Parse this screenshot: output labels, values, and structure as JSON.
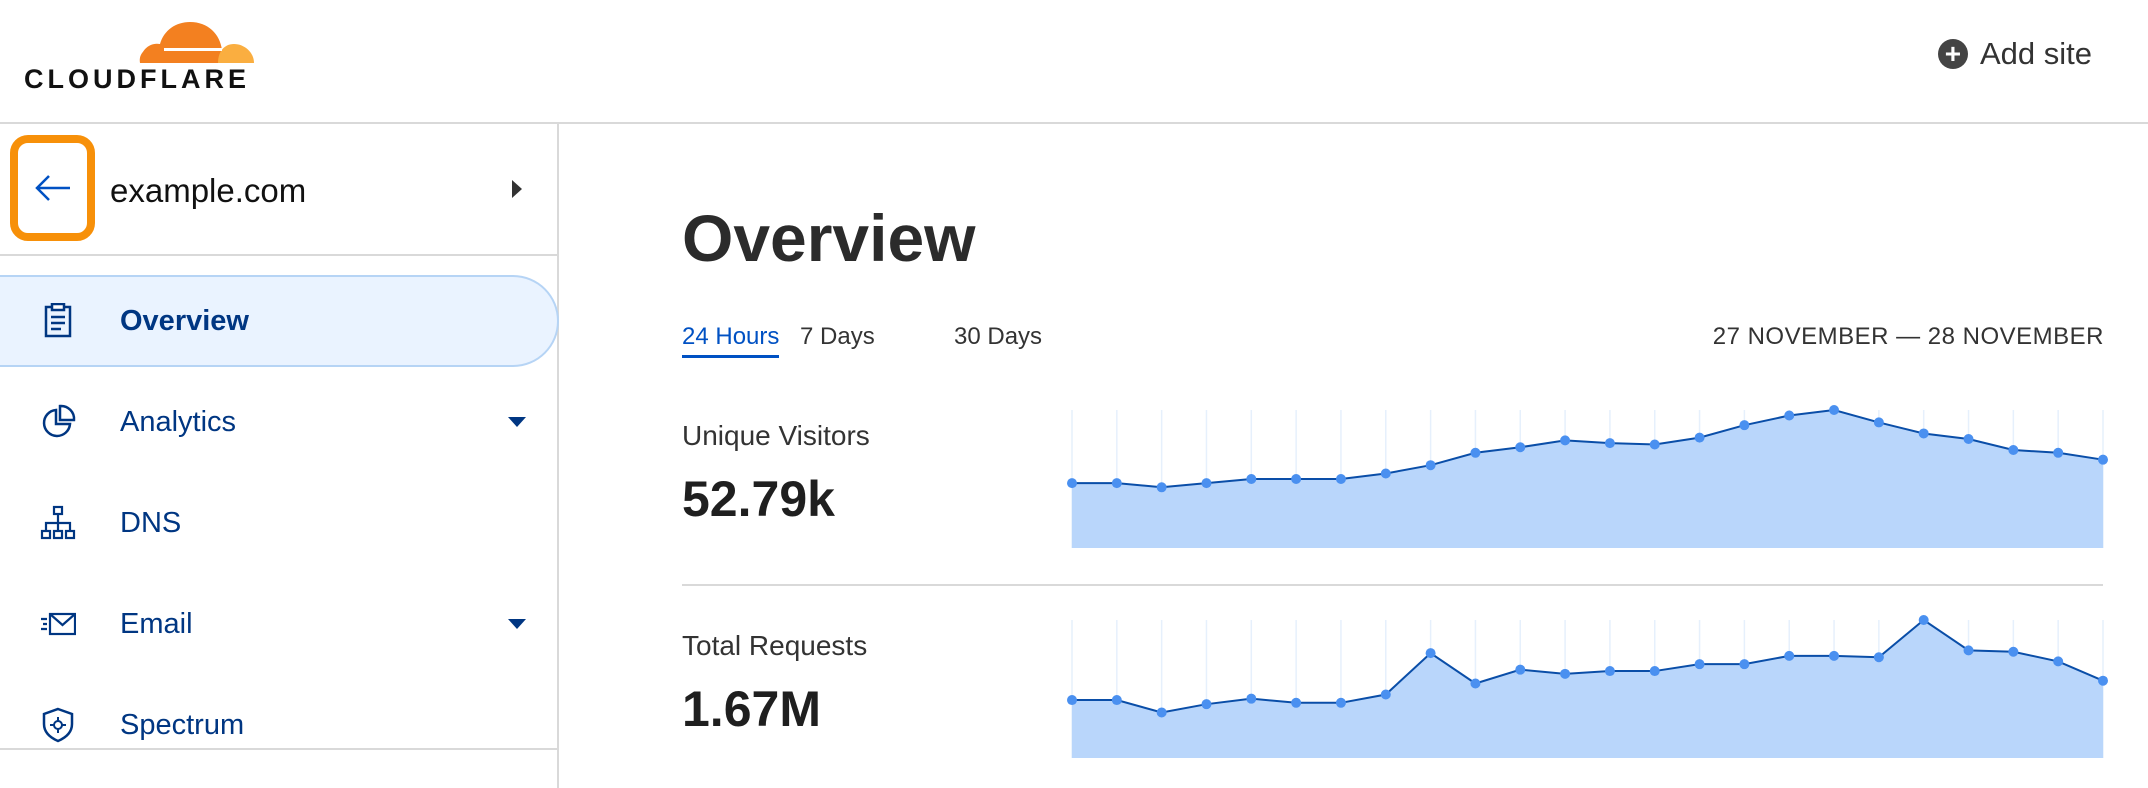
{
  "header": {
    "logo_text": "CLOUDFLARE",
    "add_site_label": "Add site",
    "add_icon": "plus-circle-icon"
  },
  "sidebar": {
    "domain": "example.com",
    "back_icon": "arrow-left-icon",
    "highlight_color": "#f79009",
    "items": [
      {
        "label": "Overview",
        "icon": "clipboard-icon",
        "active": true,
        "dropdown": false
      },
      {
        "label": "Analytics",
        "icon": "pie-chart-icon",
        "active": false,
        "dropdown": true
      },
      {
        "label": "DNS",
        "icon": "network-icon",
        "active": false,
        "dropdown": false
      },
      {
        "label": "Email",
        "icon": "email-icon",
        "active": false,
        "dropdown": true
      },
      {
        "label": "Spectrum",
        "icon": "shield-icon",
        "active": false,
        "dropdown": false
      }
    ]
  },
  "main": {
    "title": "Overview",
    "tabs": [
      {
        "label": "24 Hours",
        "active": true
      },
      {
        "label": "7 Days"
      },
      {
        "label": "30 Days"
      }
    ],
    "date_range": "27 NOVEMBER — 28 NOVEMBER",
    "metrics": [
      {
        "label": "Unique Visitors",
        "value": "52.79k"
      },
      {
        "label": "Total Requests",
        "value": "1.67M"
      }
    ]
  },
  "chart_data": [
    {
      "type": "area",
      "name": "Unique Visitors",
      "y_unit": "percent of peak",
      "ylim": [
        0,
        100
      ],
      "grid": "vertical",
      "line_color": "#0a4ea8",
      "fill_color": "#b9d6fb",
      "point_color": "#4a90f0",
      "values": [
        47,
        47,
        44,
        47,
        50,
        50,
        50,
        54,
        60,
        69,
        73,
        78,
        76,
        75,
        80,
        89,
        96,
        100,
        91,
        83,
        79,
        71,
        69,
        64
      ]
    },
    {
      "type": "area",
      "name": "Total Requests",
      "y_unit": "percent of peak",
      "ylim": [
        0,
        100
      ],
      "grid": "vertical",
      "line_color": "#0a4ea8",
      "fill_color": "#b9d6fb",
      "point_color": "#4a90f0",
      "values": [
        42,
        42,
        33,
        39,
        43,
        40,
        40,
        46,
        76,
        54,
        64,
        61,
        63,
        63,
        68,
        68,
        74,
        74,
        73,
        100,
        78,
        77,
        70,
        56
      ]
    }
  ]
}
